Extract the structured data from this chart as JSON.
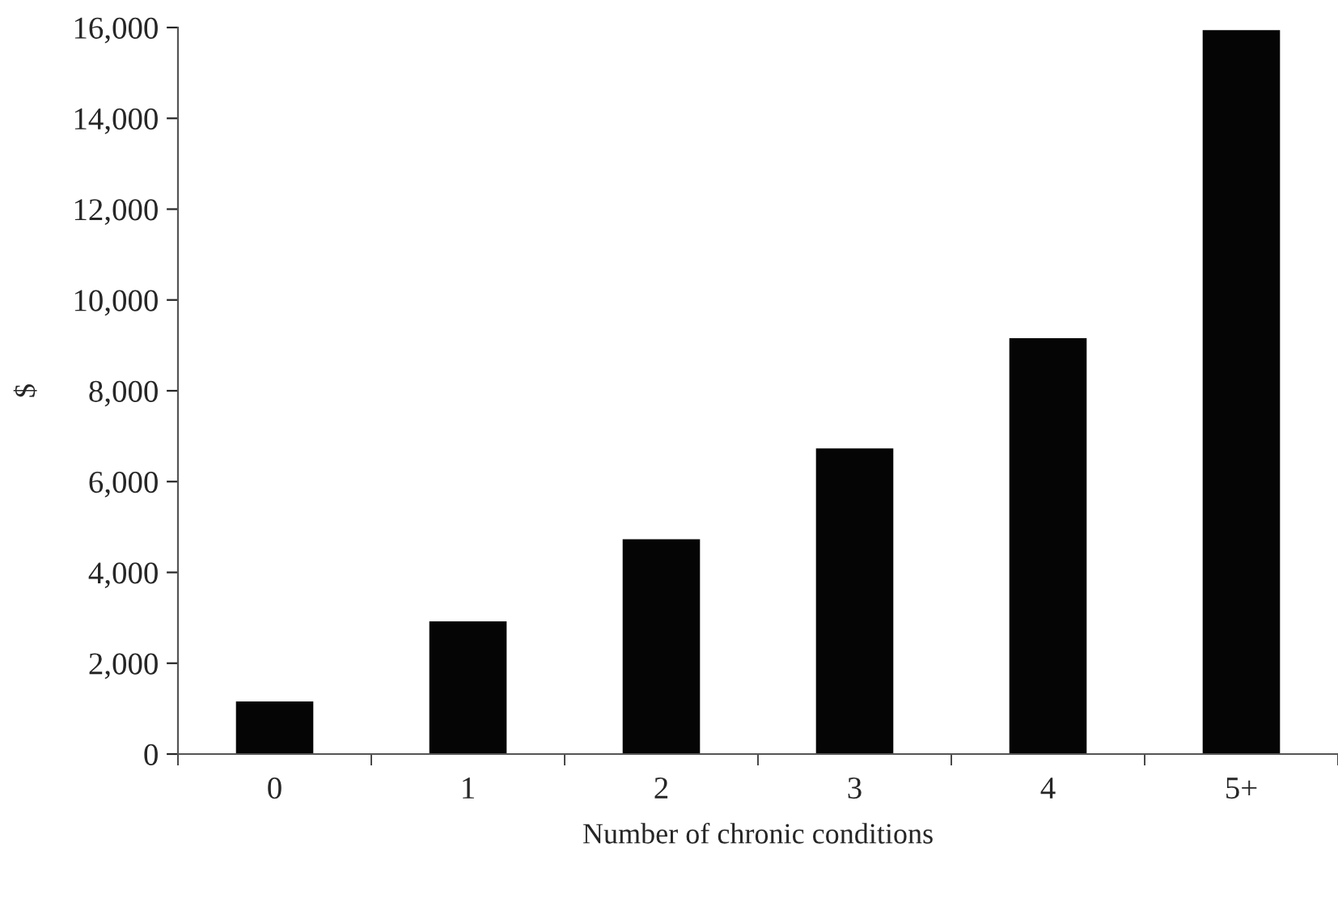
{
  "chart_data": {
    "type": "bar",
    "xlabel": "Number of chronic conditions",
    "ylabel": "$",
    "categories": [
      "0",
      "1",
      "2",
      "3",
      "4",
      "5+"
    ],
    "values": [
      1160,
      2920,
      4730,
      6730,
      9160,
      15940
    ],
    "color": "#050505",
    "ylim": [
      0,
      16000
    ],
    "yticks": [
      {
        "value": 0,
        "label": "0"
      },
      {
        "value": 2000,
        "label": "2,000"
      },
      {
        "value": 4000,
        "label": "4,000"
      },
      {
        "value": 6000,
        "label": "6,000"
      },
      {
        "value": 8000,
        "label": "8,000"
      },
      {
        "value": 10000,
        "label": "10,000"
      },
      {
        "value": 12000,
        "label": "12,000"
      },
      {
        "value": 14000,
        "label": "14,000"
      },
      {
        "value": 16000,
        "label": "16,000"
      }
    ],
    "grid": false,
    "legend": false
  }
}
